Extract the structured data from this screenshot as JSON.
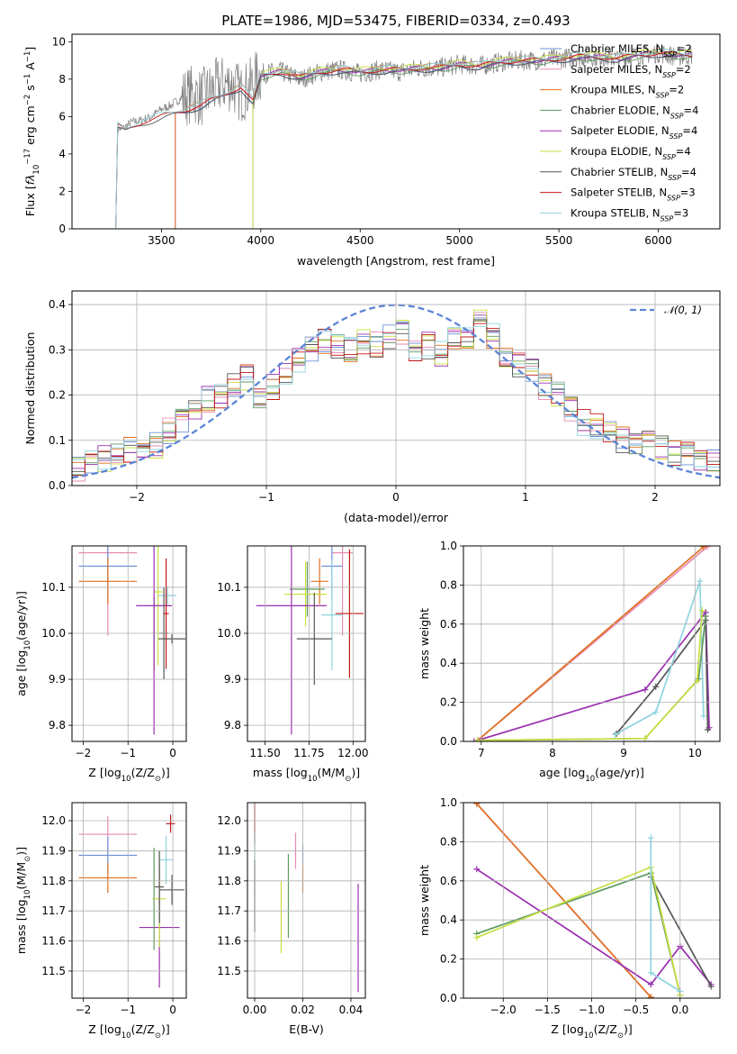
{
  "page": {
    "title": "PLATE=1986, MJD=53475, FIBERID=0334, z=0.493"
  },
  "colors": {
    "chabrier_miles": "#6b8fd6",
    "salpeter_miles": "#e88ab4",
    "kroupa_miles": "#e0701e",
    "chabrier_elodie": "#5e9a5e",
    "salpeter_elodie": "#9b2fb0",
    "kroupa_elodie": "#c8e040",
    "chabrier_stelib": "#555555",
    "salpeter_stelib": "#c01818",
    "kroupa_stelib": "#8fd3e0",
    "data": "#7f7f7f",
    "gauss": "#5b84d6"
  },
  "chart_data": [
    {
      "id": "spectrum",
      "type": "line",
      "xlabel": "wavelength [Angstrom, rest frame]",
      "ylabel_parts": [
        "Flux [",
        "f",
        "λ",
        "10",
        "−17",
        " erg cm",
        "−2",
        " s",
        "−1",
        " A",
        "−1",
        "]"
      ],
      "xlim": [
        3050,
        6310
      ],
      "ylim": [
        0,
        10.4
      ],
      "xticks": [
        3500,
        4000,
        4500,
        5000,
        5500,
        6000
      ],
      "yticks": [
        0,
        2,
        4,
        6,
        8,
        10
      ],
      "data_points": [
        [
          3270,
          0
        ],
        [
          3280,
          5.4
        ],
        [
          3300,
          5.3
        ],
        [
          3350,
          5.7
        ],
        [
          3400,
          5.8
        ],
        [
          3450,
          6.0
        ],
        [
          3500,
          6.4
        ],
        [
          3550,
          6.6
        ],
        [
          3600,
          7.0
        ],
        [
          3650,
          7.2
        ],
        [
          3700,
          7.0
        ],
        [
          3750,
          7.4
        ],
        [
          3800,
          7.7
        ],
        [
          3850,
          7.8
        ],
        [
          3900,
          7.2
        ],
        [
          3950,
          7.6
        ],
        [
          4000,
          8.3
        ],
        [
          4100,
          8.4
        ],
        [
          4200,
          8.0
        ],
        [
          4300,
          8.4
        ],
        [
          4400,
          8.5
        ],
        [
          4500,
          8.3
        ],
        [
          4600,
          8.5
        ],
        [
          4700,
          8.4
        ],
        [
          4800,
          8.6
        ],
        [
          4900,
          8.6
        ],
        [
          5000,
          8.8
        ],
        [
          5100,
          8.7
        ],
        [
          5200,
          8.9
        ],
        [
          5300,
          9.0
        ],
        [
          5400,
          9.0
        ],
        [
          5500,
          9.1
        ],
        [
          5600,
          9.2
        ],
        [
          5700,
          9.2
        ],
        [
          5800,
          9.1
        ],
        [
          5900,
          9.3
        ],
        [
          6000,
          9.4
        ],
        [
          6100,
          9.2
        ],
        [
          6170,
          9.3
        ]
      ],
      "model_points": [
        [
          3280,
          5.5
        ],
        [
          3320,
          5.3
        ],
        [
          3400,
          5.7
        ],
        [
          3500,
          6.0
        ],
        [
          3600,
          6.3
        ],
        [
          3700,
          6.6
        ],
        [
          3800,
          7.1
        ],
        [
          3900,
          7.6
        ],
        [
          3960,
          6.8
        ],
        [
          4000,
          8.2
        ],
        [
          4100,
          8.4
        ],
        [
          4200,
          8.1
        ],
        [
          4300,
          8.4
        ],
        [
          4400,
          8.5
        ],
        [
          4500,
          8.4
        ],
        [
          4600,
          8.5
        ],
        [
          4700,
          8.5
        ],
        [
          4800,
          8.6
        ],
        [
          4900,
          8.6
        ],
        [
          5000,
          8.8
        ],
        [
          5100,
          8.7
        ],
        [
          5200,
          8.9
        ],
        [
          5300,
          9.0
        ],
        [
          5400,
          9.0
        ],
        [
          5500,
          9.1
        ],
        [
          5600,
          9.2
        ],
        [
          5700,
          9.2
        ],
        [
          5800,
          9.1
        ],
        [
          5900,
          9.3
        ],
        [
          6000,
          9.4
        ],
        [
          6100,
          9.3
        ],
        [
          6170,
          9.3
        ]
      ],
      "legend": [
        {
          "key": "chabrier_miles",
          "text": "Chabrier MILES, N",
          "sub": "SSP",
          "tail": "=2"
        },
        {
          "key": "salpeter_miles",
          "text": "Salpeter MILES, N",
          "sub": "SSP",
          "tail": "=2"
        },
        {
          "key": "kroupa_miles",
          "text": "Kroupa MILES, N",
          "sub": "SSP",
          "tail": "=2"
        },
        {
          "key": "chabrier_elodie",
          "text": "Chabrier ELODIE, N",
          "sub": "SSP",
          "tail": "=4"
        },
        {
          "key": "salpeter_elodie",
          "text": "Salpeter ELODIE, N",
          "sub": "SSP",
          "tail": "=4"
        },
        {
          "key": "kroupa_elodie",
          "text": "Kroupa ELODIE, N",
          "sub": "SSP",
          "tail": "=4"
        },
        {
          "key": "chabrier_stelib",
          "text": "Chabrier STELIB, N",
          "sub": "SSP",
          "tail": "=4"
        },
        {
          "key": "salpeter_stelib",
          "text": "Salpeter STELIB, N",
          "sub": "SSP",
          "tail": "=3"
        },
        {
          "key": "kroupa_stelib",
          "text": "Kroupa STELIB, N",
          "sub": "SSP",
          "tail": "=3"
        }
      ]
    },
    {
      "id": "residuals",
      "type": "line",
      "xlabel": "(data-model)/error",
      "ylabel": "Normed distribution",
      "xlim": [
        -2.5,
        2.5
      ],
      "ylim": [
        0,
        0.43
      ],
      "xticks": [
        -2,
        -1,
        0,
        1,
        2
      ],
      "yticks": [
        0.0,
        0.1,
        0.2,
        0.3,
        0.4
      ],
      "legend_text": "𝒩(0, 1)",
      "bin_width": 0.1,
      "hist_centers": [
        -2.45,
        -2.35,
        -2.25,
        -2.15,
        -2.05,
        -1.95,
        -1.85,
        -1.75,
        -1.65,
        -1.55,
        -1.45,
        -1.35,
        -1.25,
        -1.15,
        -1.05,
        -0.95,
        -0.85,
        -0.75,
        -0.65,
        -0.55,
        -0.45,
        -0.35,
        -0.25,
        -0.15,
        -0.05,
        0.05,
        0.15,
        0.25,
        0.35,
        0.45,
        0.55,
        0.65,
        0.75,
        0.85,
        0.95,
        1.05,
        1.15,
        1.25,
        1.35,
        1.45,
        1.55,
        1.65,
        1.75,
        1.85,
        1.95,
        2.05,
        2.15,
        2.25,
        2.35,
        2.45
      ],
      "hist_values": [
        0.04,
        0.05,
        0.06,
        0.07,
        0.08,
        0.08,
        0.09,
        0.12,
        0.14,
        0.16,
        0.19,
        0.2,
        0.22,
        0.24,
        0.2,
        0.22,
        0.25,
        0.28,
        0.3,
        0.32,
        0.31,
        0.3,
        0.32,
        0.31,
        0.33,
        0.34,
        0.3,
        0.31,
        0.29,
        0.32,
        0.33,
        0.37,
        0.33,
        0.28,
        0.27,
        0.25,
        0.22,
        0.2,
        0.17,
        0.14,
        0.13,
        0.12,
        0.1,
        0.1,
        0.09,
        0.08,
        0.07,
        0.07,
        0.06,
        0.06
      ]
    },
    {
      "id": "age_vs_Z",
      "type": "scatter",
      "xlabel_parts": [
        "Z [log",
        "10",
        "(Z/Z",
        "⊙",
        ")]"
      ],
      "ylabel_parts": [
        "age  [log",
        "10",
        "(age/yr)]"
      ],
      "xlim": [
        -2.25,
        0.3
      ],
      "ylim": [
        9.765,
        10.19
      ],
      "xticks": [
        -2,
        -1,
        0
      ],
      "yticks": [
        9.8,
        9.9,
        10.0,
        10.1
      ],
      "points": [
        {
          "key": "salpeter_miles",
          "x": -1.45,
          "y": 10.175,
          "xe": 0.65,
          "ye": 0.18
        },
        {
          "key": "chabrier_miles",
          "x": -1.45,
          "y": 10.146,
          "xe": 0.65,
          "ye": 0.07
        },
        {
          "key": "kroupa_miles",
          "x": -1.45,
          "y": 10.113,
          "xe": 0.65,
          "ye": 0.05
        },
        {
          "key": "chabrier_elodie",
          "x": -0.42,
          "y": 10.0,
          "xe": 0.03,
          "ye": 0.08
        },
        {
          "key": "kroupa_elodie",
          "x": -0.33,
          "y": 10.09,
          "xe": 0.1,
          "ye": 0.16
        },
        {
          "key": "kroupa_stelib",
          "x": -0.12,
          "y": 10.082,
          "xe": 0.2,
          "ye": 0.02
        },
        {
          "key": "salpeter_elodie",
          "x": -0.42,
          "y": 10.06,
          "xe": 0.4,
          "ye": 0.28
        },
        {
          "key": "chabrier_stelib",
          "x": -0.2,
          "y": 10.0,
          "xe": 0.1,
          "ye": 0.1
        },
        {
          "key": "salpeter_stelib",
          "x": -0.15,
          "y": 10.043,
          "xe": 0.06,
          "ye": 0.12
        },
        {
          "key": "chabrier_stelib",
          "x": -0.02,
          "y": 9.988,
          "xe": 0.3,
          "ye": 0.01
        }
      ]
    },
    {
      "id": "age_vs_mass",
      "type": "scatter",
      "xlabel_parts": [
        "mass [log",
        "10",
        "(M/M",
        "⊙",
        ")]"
      ],
      "xlim": [
        11.4,
        12.07
      ],
      "ylim": [
        9.765,
        10.19
      ],
      "xticks": [
        11.5,
        11.75,
        12.0
      ],
      "yticks": [
        9.8,
        9.9,
        10.0,
        10.1
      ],
      "points": [
        {
          "key": "salpeter_miles",
          "x": 11.94,
          "y": 10.175,
          "xe": 0.06,
          "ye": 0.18
        },
        {
          "key": "chabrier_miles",
          "x": 11.88,
          "y": 10.146,
          "xe": 0.06,
          "ye": 0.07
        },
        {
          "key": "kroupa_miles",
          "x": 11.81,
          "y": 10.113,
          "xe": 0.05,
          "ye": 0.05
        },
        {
          "key": "chabrier_elodie",
          "x": 11.74,
          "y": 10.096,
          "xe": 0.1,
          "ye": 0.06
        },
        {
          "key": "kroupa_elodie",
          "x": 11.73,
          "y": 10.085,
          "xe": 0.12,
          "ye": 0.07
        },
        {
          "key": "salpeter_elodie",
          "x": 11.65,
          "y": 10.06,
          "xe": 0.2,
          "ye": 0.28
        },
        {
          "key": "kroupa_stelib",
          "x": 11.88,
          "y": 10.04,
          "xe": 0.06,
          "ye": 0.12
        },
        {
          "key": "chabrier_stelib",
          "x": 11.78,
          "y": 9.988,
          "xe": 0.1,
          "ye": 0.1
        },
        {
          "key": "salpeter_stelib",
          "x": 11.98,
          "y": 10.043,
          "xe": 0.08,
          "ye": 0.14
        }
      ]
    },
    {
      "id": "weight_vs_age",
      "type": "line",
      "xlabel_parts": [
        "age  [log",
        "10",
        "(age/yr)]"
      ],
      "ylabel": "mass weight",
      "xlim": [
        6.75,
        10.35
      ],
      "ylim": [
        0,
        1.0
      ],
      "xticks": [
        7,
        8,
        9,
        10
      ],
      "yticks": [
        0.0,
        0.2,
        0.4,
        0.6,
        0.8,
        1.0
      ],
      "series": [
        {
          "key": "salpeter_miles",
          "x": [
            6.95,
            10.17
          ],
          "y": [
            0.005,
            0.995
          ]
        },
        {
          "key": "kroupa_miles",
          "x": [
            6.95,
            10.12
          ],
          "y": [
            0.005,
            0.995
          ]
        },
        {
          "key": "salpeter_elodie",
          "x": [
            6.9,
            9.3,
            10.15,
            10.2
          ],
          "y": [
            0.0,
            0.265,
            0.66,
            0.07
          ]
        },
        {
          "key": "chabrier_stelib",
          "x": [
            8.9,
            9.45,
            10.15,
            10.18
          ],
          "y": [
            0.04,
            0.28,
            0.62,
            0.06
          ]
        },
        {
          "key": "kroupa_stelib",
          "x": [
            8.88,
            9.45,
            10.07,
            10.12
          ],
          "y": [
            0.035,
            0.15,
            0.82,
            0.13
          ]
        },
        {
          "key": "chabrier_elodie",
          "x": [
            6.95,
            9.3,
            10.05,
            10.15
          ],
          "y": [
            0.005,
            0.015,
            0.32,
            0.64
          ]
        },
        {
          "key": "kroupa_elodie",
          "x": [
            6.95,
            9.3,
            10.03,
            10.1
          ],
          "y": [
            0.005,
            0.015,
            0.31,
            0.67
          ]
        }
      ]
    },
    {
      "id": "mass_vs_Z",
      "type": "scatter",
      "xlabel_parts": [
        "Z [log",
        "10",
        "(Z/Z",
        "⊙",
        ")]"
      ],
      "ylabel_parts": [
        "mass [log",
        "10",
        "(M/M",
        "⊙",
        ")]"
      ],
      "xlim": [
        -2.25,
        0.3
      ],
      "ylim": [
        11.41,
        12.06
      ],
      "xticks": [
        -2,
        -1,
        0
      ],
      "yticks": [
        11.5,
        11.6,
        11.7,
        11.8,
        11.9,
        12.0
      ],
      "points": [
        {
          "key": "salpeter_miles",
          "x": -1.45,
          "y": 11.955,
          "xe": 0.65,
          "ye": 0.06
        },
        {
          "key": "chabrier_miles",
          "x": -1.45,
          "y": 11.885,
          "xe": 0.65,
          "ye": 0.06
        },
        {
          "key": "kroupa_miles",
          "x": -1.45,
          "y": 11.81,
          "xe": 0.65,
          "ye": 0.05
        },
        {
          "key": "salpeter_elodie",
          "x": -0.3,
          "y": 11.645,
          "xe": 0.45,
          "ye": 0.2
        },
        {
          "key": "chabrier_elodie",
          "x": -0.42,
          "y": 11.74,
          "xe": 0.03,
          "ye": 0.17
        },
        {
          "key": "kroupa_elodie",
          "x": -0.3,
          "y": 11.74,
          "xe": 0.15,
          "ye": 0.16
        },
        {
          "key": "kroupa_stelib",
          "x": -0.15,
          "y": 11.87,
          "xe": 0.15,
          "ye": 0.08
        },
        {
          "key": "chabrier_stelib",
          "x": -0.3,
          "y": 11.78,
          "xe": 0.1,
          "ye": 0.12
        },
        {
          "key": "chabrier_stelib",
          "x": -0.02,
          "y": 11.77,
          "xe": 0.28,
          "ye": 0.05
        },
        {
          "key": "salpeter_stelib",
          "x": -0.05,
          "y": 11.99,
          "xe": 0.1,
          "ye": 0.03
        }
      ]
    },
    {
      "id": "mass_vs_EBV",
      "type": "scatter",
      "xlabel": "E(B-V)",
      "xlim": [
        -0.003,
        0.046
      ],
      "ylim": [
        11.41,
        12.06
      ],
      "xticks": [
        0.0,
        0.02,
        0.04
      ],
      "yticks": [
        11.5,
        11.6,
        11.7,
        11.8,
        11.9,
        12.0
      ],
      "points": [
        {
          "key": "salpeter_stelib",
          "x": 0.0,
          "y": 11.99,
          "ye": 0.07
        },
        {
          "key": "kroupa_stelib",
          "x": 0.0,
          "y": 11.86,
          "ye": 0.1
        },
        {
          "key": "chabrier_stelib",
          "x": 0.0,
          "y": 11.75,
          "ye": 0.12
        },
        {
          "key": "kroupa_elodie",
          "x": 0.011,
          "y": 11.68,
          "ye": 0.12
        },
        {
          "key": "chabrier_elodie",
          "x": 0.014,
          "y": 11.75,
          "ye": 0.14
        },
        {
          "key": "salpeter_miles",
          "x": 0.017,
          "y": 11.9,
          "ye": 0.06
        },
        {
          "key": "chabrier_miles",
          "x": 0.02,
          "y": 11.89,
          "ye": 0.03
        },
        {
          "key": "kroupa_miles",
          "x": 0.02,
          "y": 11.81,
          "ye": 0.05
        },
        {
          "key": "salpeter_elodie",
          "x": 0.043,
          "y": 11.61,
          "ye": 0.18
        }
      ]
    },
    {
      "id": "weight_vs_Z",
      "type": "line",
      "xlabel_parts": [
        "Z [log",
        "10",
        "(Z/Z",
        "⊙",
        ")]"
      ],
      "ylabel": "mass weight",
      "xlim": [
        -2.45,
        0.45
      ],
      "ylim": [
        0,
        1.0
      ],
      "xticks": [
        -2.0,
        -1.5,
        -1.0,
        -0.5,
        0.0
      ],
      "xtick_labels": [
        "−2.0",
        "−1.5",
        "−1.0",
        "−0.5",
        "0.0"
      ],
      "yticks": [
        0.0,
        0.2,
        0.4,
        0.6,
        0.8,
        1.0
      ],
      "series": [
        {
          "key": "salpeter_miles",
          "x": [
            -2.3,
            -0.33
          ],
          "y": [
            0.995,
            0.005
          ]
        },
        {
          "key": "kroupa_miles",
          "x": [
            -2.3,
            -0.33
          ],
          "y": [
            0.995,
            0.005
          ]
        },
        {
          "key": "salpeter_elodie",
          "x": [
            -2.3,
            -0.33,
            0.0,
            0.35
          ],
          "y": [
            0.66,
            0.07,
            0.265,
            0.07
          ]
        },
        {
          "key": "chabrier_stelib",
          "x": [
            -0.33,
            0.35
          ],
          "y": [
            0.62,
            0.06
          ]
        },
        {
          "key": "chabrier_elodie",
          "x": [
            -2.3,
            -0.33,
            0.0
          ],
          "y": [
            0.33,
            0.64,
            0.015
          ]
        },
        {
          "key": "kroupa_elodie",
          "x": [
            -2.3,
            -0.33,
            0.0
          ],
          "y": [
            0.31,
            0.67,
            0.015
          ]
        },
        {
          "key": "kroupa_stelib",
          "x": [
            -0.33,
            -0.33,
            0.0
          ],
          "y": [
            0.82,
            0.13,
            0.035
          ]
        }
      ]
    }
  ]
}
